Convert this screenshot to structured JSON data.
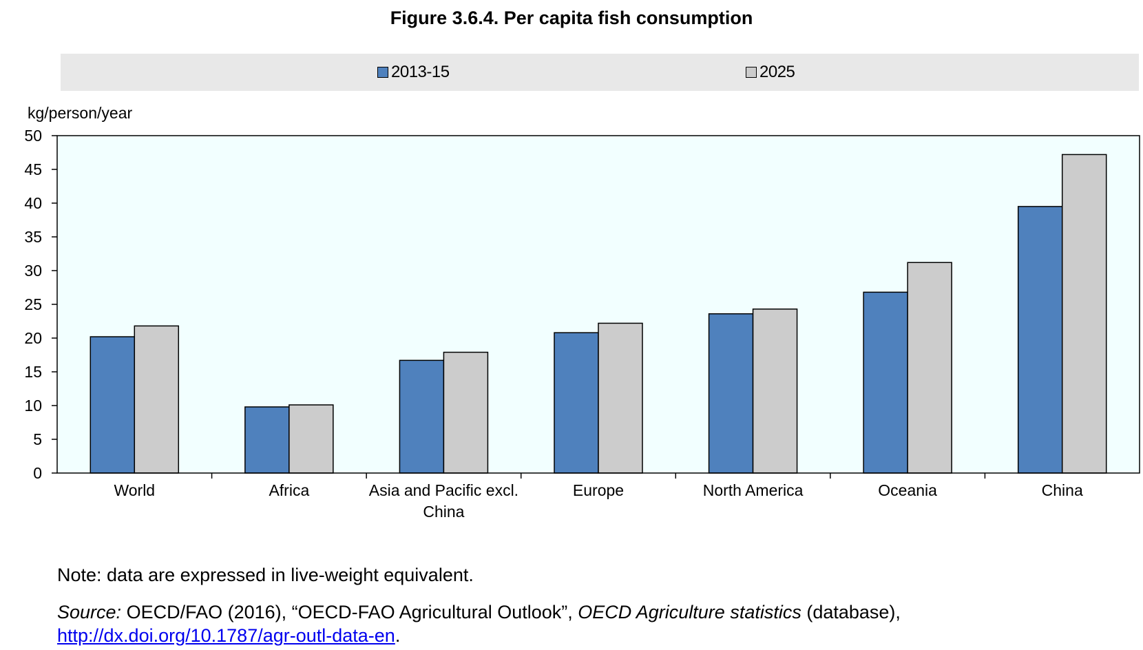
{
  "title": "Figure 3.6.4. Per capita fish consumption",
  "note": "Note: data are expressed in live-weight equivalent.",
  "source": {
    "label": "Source:",
    "part1": " OECD/FAO (2016), “OECD-FAO Agricultural Outlook”, ",
    "italic": "OECD Agriculture statistics",
    "part2": " (database), ",
    "link": "http://dx.doi.org/10.1787/agr-outl-data-en",
    "end": "."
  },
  "chart_data": {
    "type": "bar",
    "ylabel": "kg/person/year",
    "ylim": [
      0,
      50
    ],
    "yticks": [
      0,
      5,
      10,
      15,
      20,
      25,
      30,
      35,
      40,
      45,
      50
    ],
    "legend_position": "top",
    "categories": [
      "World",
      "Africa",
      "Asia and Pacific excl. China",
      "Europe",
      "North America",
      "Oceania",
      "China"
    ],
    "series": [
      {
        "name": "2013-15",
        "color": "#4f81bd",
        "values": [
          20.2,
          9.8,
          16.7,
          20.8,
          23.6,
          26.8,
          39.5
        ]
      },
      {
        "name": "2025",
        "color": "#cccccc",
        "values": [
          21.8,
          10.1,
          17.9,
          22.2,
          24.3,
          31.2,
          47.2
        ]
      }
    ],
    "plot_background": "#f2ffff",
    "grid": false
  }
}
